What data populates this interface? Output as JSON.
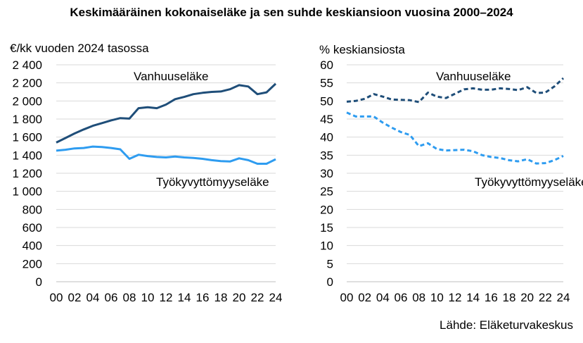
{
  "title": "Keskimääräinen kokonaiseläke ja sen suhde keskiansioon vuosina 2000–2024",
  "source": "Lähde: Eläketurvakeskus",
  "colors": {
    "dark": "#1f4e79",
    "light": "#2e9cf0",
    "grid": "#d9d9d9"
  },
  "chart_data": [
    {
      "type": "line",
      "ylabel": "€/kk vuoden  2024 tasossa",
      "ylim": [
        0,
        2400
      ],
      "yticks": [
        0,
        200,
        400,
        600,
        800,
        1000,
        1200,
        1400,
        1600,
        1800,
        2000,
        2200,
        2400
      ],
      "ytick_labels": [
        "0",
        "200",
        "400",
        "600",
        "800",
        "1 000",
        "1 200",
        "1 400",
        "1 600",
        "1 800",
        "2 000",
        "2 200",
        "2 400"
      ],
      "x": [
        2000,
        2001,
        2002,
        2003,
        2004,
        2005,
        2006,
        2007,
        2008,
        2009,
        2010,
        2011,
        2012,
        2013,
        2014,
        2015,
        2016,
        2017,
        2018,
        2019,
        2020,
        2021,
        2022,
        2023,
        2024
      ],
      "xtick_labels": [
        "00",
        "02",
        "04",
        "06",
        "08",
        "10",
        "12",
        "14",
        "16",
        "18",
        "20",
        "22",
        "24"
      ],
      "grid": true,
      "series": [
        {
          "name": "Vanhuuseläke",
          "style": "solid",
          "color": "#1f4e79",
          "values": [
            1540,
            1590,
            1640,
            1685,
            1725,
            1755,
            1785,
            1810,
            1805,
            1920,
            1930,
            1920,
            1960,
            2020,
            2045,
            2075,
            2090,
            2100,
            2105,
            2130,
            2175,
            2160,
            2075,
            2095,
            2190
          ]
        },
        {
          "name": "Työkyvyttömyyseläke",
          "style": "solid",
          "color": "#2e9cf0",
          "values": [
            1450,
            1460,
            1475,
            1480,
            1495,
            1490,
            1480,
            1465,
            1360,
            1405,
            1390,
            1380,
            1375,
            1385,
            1375,
            1370,
            1360,
            1345,
            1335,
            1330,
            1365,
            1345,
            1305,
            1305,
            1355
          ]
        }
      ]
    },
    {
      "type": "line",
      "ylabel": "% keskiansiosta",
      "ylim": [
        0,
        60
      ],
      "yticks": [
        0,
        5,
        10,
        15,
        20,
        25,
        30,
        35,
        40,
        45,
        50,
        55,
        60
      ],
      "ytick_labels": [
        "0",
        "5",
        "10",
        "15",
        "20",
        "25",
        "30",
        "35",
        "40",
        "45",
        "50",
        "55",
        "60"
      ],
      "x": [
        2000,
        2001,
        2002,
        2003,
        2004,
        2005,
        2006,
        2007,
        2008,
        2009,
        2010,
        2011,
        2012,
        2013,
        2014,
        2015,
        2016,
        2017,
        2018,
        2019,
        2020,
        2021,
        2022,
        2023,
        2024
      ],
      "xtick_labels": [
        "00",
        "02",
        "04",
        "06",
        "08",
        "10",
        "12",
        "14",
        "16",
        "18",
        "20",
        "22",
        "24"
      ],
      "grid": true,
      "series": [
        {
          "name": "Vanhuuseläke",
          "style": "dashed",
          "color": "#1f4e79",
          "values": [
            49.8,
            50.0,
            50.6,
            51.9,
            51.2,
            50.4,
            50.3,
            50.2,
            49.7,
            52.3,
            51.2,
            50.8,
            52.0,
            53.2,
            53.5,
            53.1,
            53.1,
            53.5,
            53.3,
            53.0,
            53.8,
            52.2,
            52.3,
            54.0,
            56.3
          ]
        },
        {
          "name": "Työkyvyttömyyseläke",
          "style": "dashed",
          "color": "#2e9cf0",
          "values": [
            46.8,
            45.7,
            45.7,
            45.7,
            44.0,
            42.6,
            41.4,
            40.6,
            37.5,
            38.3,
            36.7,
            36.3,
            36.4,
            36.5,
            36.1,
            35.0,
            34.5,
            34.2,
            33.6,
            33.3,
            33.9,
            32.7,
            32.8,
            33.6,
            34.8
          ]
        }
      ]
    }
  ]
}
